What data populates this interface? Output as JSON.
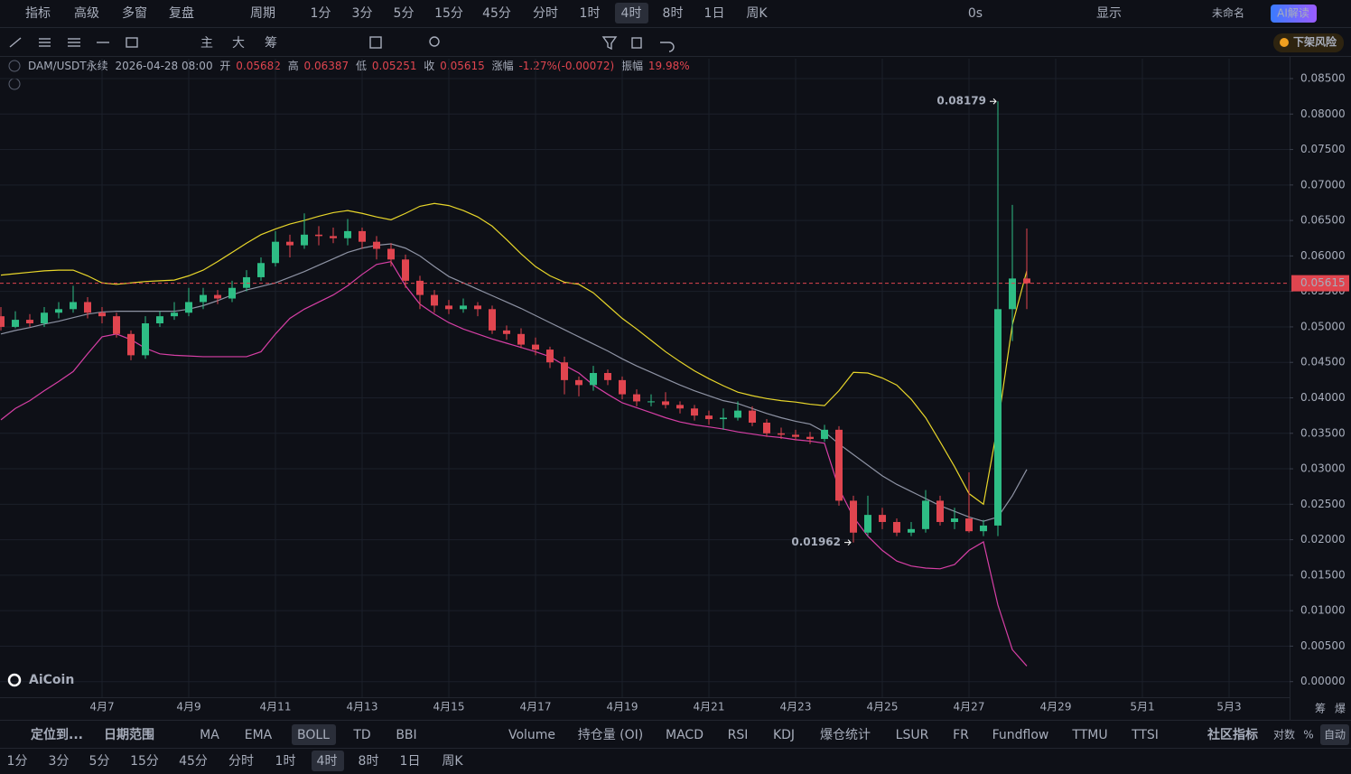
{
  "top_toolbar": {
    "left": [
      "指标",
      "高级",
      "多窗",
      "复盘",
      "周期"
    ],
    "periods": [
      "1分",
      "3分",
      "5分",
      "15分",
      "45分",
      "分时",
      "1时",
      "4时",
      "8时",
      "1日",
      "周K"
    ],
    "right": [
      "0s",
      "显示",
      "未命名",
      "AI解读"
    ]
  },
  "drawing_toolbar": {
    "labels": [
      "主",
      "大",
      "筹"
    ],
    "risk_badge": "下架风险"
  },
  "info_bar": {
    "symbol": "DAM/USDT永续",
    "time": "2026-04-28 08:00",
    "open_label": "开",
    "open": 0.05682,
    "high_label": "高",
    "high": 0.06387,
    "low_label": "低",
    "low": 0.05251,
    "close_label": "收",
    "close": 0.05615,
    "change_label": "涨幅",
    "change": "-1.27%(-0.00072)",
    "amplitude_label": "振幅",
    "amplitude": "19.98%"
  },
  "chart_data": {
    "type": "candlestick",
    "up_color": "#2ebd85",
    "down_color": "#e0454f",
    "grid": true,
    "x_labels": [
      "4月7",
      "4月9",
      "4月11",
      "4月13",
      "4月15",
      "4月17",
      "4月19",
      "4月21",
      "4月23",
      "4月25",
      "4月27",
      "4月29",
      "5月1",
      "5月3"
    ],
    "ylim": [
      -0.0022,
      0.0878
    ],
    "yticks": [
      {
        "value": 0.085,
        "label": "0.08500"
      },
      {
        "value": 0.08,
        "label": "0.08000"
      },
      {
        "value": 0.075,
        "label": "0.07500"
      },
      {
        "value": 0.07,
        "label": "0.07000"
      },
      {
        "value": 0.065,
        "label": "0.06500"
      },
      {
        "value": 0.06,
        "label": "0.06000"
      },
      {
        "value": 0.055,
        "label": "0.05500"
      },
      {
        "value": 0.05,
        "label": "0.05000"
      },
      {
        "value": 0.045,
        "label": "0.04500"
      },
      {
        "value": 0.04,
        "label": "0.04000"
      },
      {
        "value": 0.035,
        "label": "0.03500"
      },
      {
        "value": 0.03,
        "label": "0.03000"
      },
      {
        "value": 0.025,
        "label": "0.02500"
      },
      {
        "value": 0.02,
        "label": "0.02000"
      },
      {
        "value": 0.015,
        "label": "0.01500"
      },
      {
        "value": 0.01,
        "label": "0.01000"
      },
      {
        "value": 0.005,
        "label": "0.00500"
      },
      {
        "value": 0,
        "label": "0.00000"
      }
    ],
    "price_line": 0.05615,
    "max_label": 0.08179,
    "min_label": 0.01962,
    "candles": [
      [
        0.0515,
        0.0528,
        0.0495,
        0.05
      ],
      [
        0.05,
        0.0522,
        0.0498,
        0.051
      ],
      [
        0.051,
        0.0518,
        0.05,
        0.0505
      ],
      [
        0.0505,
        0.0528,
        0.05,
        0.052
      ],
      [
        0.052,
        0.0535,
        0.0512,
        0.0525
      ],
      [
        0.0525,
        0.0558,
        0.052,
        0.0535
      ],
      [
        0.0535,
        0.0542,
        0.0512,
        0.052
      ],
      [
        0.052,
        0.0528,
        0.0505,
        0.0515
      ],
      [
        0.0515,
        0.052,
        0.0485,
        0.049
      ],
      [
        0.049,
        0.0495,
        0.0453,
        0.046
      ],
      [
        0.046,
        0.0515,
        0.0455,
        0.0505
      ],
      [
        0.0505,
        0.0522,
        0.05,
        0.0515
      ],
      [
        0.0515,
        0.0535,
        0.051,
        0.052
      ],
      [
        0.052,
        0.0555,
        0.0515,
        0.0535
      ],
      [
        0.0535,
        0.0555,
        0.0525,
        0.0545
      ],
      [
        0.0545,
        0.0552,
        0.0532,
        0.054
      ],
      [
        0.054,
        0.0565,
        0.0535,
        0.0555
      ],
      [
        0.0555,
        0.058,
        0.055,
        0.057
      ],
      [
        0.057,
        0.0598,
        0.0565,
        0.059
      ],
      [
        0.059,
        0.0635,
        0.0585,
        0.062
      ],
      [
        0.062,
        0.063,
        0.0598,
        0.0615
      ],
      [
        0.0615,
        0.066,
        0.061,
        0.063
      ],
      [
        0.063,
        0.0642,
        0.0615,
        0.0628
      ],
      [
        0.0628,
        0.064,
        0.0618,
        0.0625
      ],
      [
        0.0625,
        0.0652,
        0.0615,
        0.0635
      ],
      [
        0.0635,
        0.064,
        0.061,
        0.062
      ],
      [
        0.062,
        0.0628,
        0.0595,
        0.061
      ],
      [
        0.061,
        0.0618,
        0.0585,
        0.0595
      ],
      [
        0.0595,
        0.0602,
        0.0555,
        0.0565
      ],
      [
        0.0565,
        0.0572,
        0.0525,
        0.0545
      ],
      [
        0.0545,
        0.0552,
        0.052,
        0.053
      ],
      [
        0.053,
        0.0538,
        0.0518,
        0.0525
      ],
      [
        0.0525,
        0.054,
        0.052,
        0.053
      ],
      [
        0.053,
        0.0535,
        0.0515,
        0.0525
      ],
      [
        0.0525,
        0.053,
        0.049,
        0.0495
      ],
      [
        0.0495,
        0.0502,
        0.0482,
        0.049
      ],
      [
        0.049,
        0.0498,
        0.047,
        0.0475
      ],
      [
        0.0475,
        0.0485,
        0.046,
        0.0468
      ],
      [
        0.0468,
        0.0472,
        0.0442,
        0.045
      ],
      [
        0.045,
        0.0458,
        0.0405,
        0.0425
      ],
      [
        0.0425,
        0.043,
        0.0402,
        0.0418
      ],
      [
        0.0418,
        0.0445,
        0.041,
        0.0435
      ],
      [
        0.0435,
        0.044,
        0.0418,
        0.0425
      ],
      [
        0.0425,
        0.043,
        0.0398,
        0.0405
      ],
      [
        0.0405,
        0.0412,
        0.0388,
        0.0395
      ],
      [
        0.0395,
        0.0405,
        0.0388,
        0.0395
      ],
      [
        0.0395,
        0.0408,
        0.0385,
        0.039
      ],
      [
        0.039,
        0.0395,
        0.0378,
        0.0385
      ],
      [
        0.0385,
        0.039,
        0.0368,
        0.0375
      ],
      [
        0.0375,
        0.0382,
        0.0362,
        0.037
      ],
      [
        0.037,
        0.0385,
        0.0355,
        0.0372
      ],
      [
        0.0372,
        0.0395,
        0.0368,
        0.0382
      ],
      [
        0.0382,
        0.0388,
        0.036,
        0.0365
      ],
      [
        0.0365,
        0.037,
        0.0345,
        0.035
      ],
      [
        0.035,
        0.0358,
        0.0342,
        0.0348
      ],
      [
        0.0348,
        0.0355,
        0.034,
        0.0345
      ],
      [
        0.0345,
        0.0352,
        0.0335,
        0.0342
      ],
      [
        0.0342,
        0.0362,
        0.0338,
        0.0355
      ],
      [
        0.0355,
        0.036,
        0.0248,
        0.0255
      ],
      [
        0.0255,
        0.0262,
        0.01962,
        0.021
      ],
      [
        0.021,
        0.0262,
        0.0205,
        0.0235
      ],
      [
        0.0235,
        0.0245,
        0.0215,
        0.0225
      ],
      [
        0.0225,
        0.023,
        0.0205,
        0.021
      ],
      [
        0.021,
        0.0225,
        0.0205,
        0.0215
      ],
      [
        0.0215,
        0.027,
        0.021,
        0.0255
      ],
      [
        0.0255,
        0.0262,
        0.022,
        0.0225
      ],
      [
        0.0225,
        0.0245,
        0.0215,
        0.023
      ],
      [
        0.023,
        0.0295,
        0.021,
        0.0212
      ],
      [
        0.0212,
        0.0228,
        0.0205,
        0.022
      ],
      [
        0.022,
        0.08179,
        0.0205,
        0.0525
      ],
      [
        0.0525,
        0.0672,
        0.048,
        0.05682
      ],
      [
        0.05682,
        0.06387,
        0.05251,
        0.05615
      ]
    ],
    "boll_upper": {
      "color": "#e8d62a",
      "values": [
        0.0573,
        0.0575,
        0.0577,
        0.0579,
        0.058,
        0.058,
        0.0572,
        0.0562,
        0.056,
        0.0562,
        0.0564,
        0.0565,
        0.0566,
        0.0572,
        0.058,
        0.0592,
        0.0605,
        0.0618,
        0.063,
        0.0638,
        0.0645,
        0.065,
        0.0656,
        0.0661,
        0.0664,
        0.066,
        0.0655,
        0.0651,
        0.066,
        0.067,
        0.0674,
        0.0671,
        0.0664,
        0.0655,
        0.0642,
        0.0623,
        0.0603,
        0.0585,
        0.0572,
        0.0563,
        0.056,
        0.0548,
        0.053,
        0.0512,
        0.0497,
        0.0481,
        0.0465,
        0.0451,
        0.0438,
        0.0427,
        0.0417,
        0.0408,
        0.0403,
        0.0399,
        0.0396,
        0.0394,
        0.0391,
        0.0389,
        0.041,
        0.0436,
        0.0435,
        0.0428,
        0.0418,
        0.0398,
        0.0372,
        0.0338,
        0.0303,
        0.0265,
        0.025,
        0.0363,
        0.0503,
        0.0579
      ]
    },
    "boll_mid": {
      "color": "#8e93a4",
      "values": [
        0.049,
        0.0495,
        0.0499,
        0.0504,
        0.0508,
        0.0513,
        0.0518,
        0.0521,
        0.0522,
        0.0522,
        0.0522,
        0.0522,
        0.0522,
        0.0525,
        0.053,
        0.0537,
        0.0545,
        0.0552,
        0.0557,
        0.0562,
        0.057,
        0.0578,
        0.0587,
        0.0596,
        0.0605,
        0.0611,
        0.0615,
        0.0617,
        0.0611,
        0.06,
        0.0585,
        0.0571,
        0.0562,
        0.0553,
        0.0544,
        0.0535,
        0.0526,
        0.0516,
        0.0506,
        0.0496,
        0.0486,
        0.0476,
        0.0466,
        0.0455,
        0.0445,
        0.0436,
        0.0427,
        0.0418,
        0.041,
        0.0403,
        0.0396,
        0.0392,
        0.0385,
        0.0378,
        0.0372,
        0.0367,
        0.0363,
        0.0352,
        0.0335,
        0.032,
        0.0305,
        0.029,
        0.0278,
        0.0268,
        0.0258,
        0.0248,
        0.024,
        0.0232,
        0.0226,
        0.0232,
        0.0262,
        0.0299
      ]
    },
    "boll_lower": {
      "color": "#d63fa5",
      "values": [
        0.0369,
        0.0385,
        0.0396,
        0.041,
        0.0423,
        0.0437,
        0.0462,
        0.0486,
        0.049,
        0.0482,
        0.047,
        0.0462,
        0.046,
        0.0459,
        0.0458,
        0.0458,
        0.0458,
        0.0458,
        0.0465,
        0.049,
        0.0512,
        0.0525,
        0.0535,
        0.0545,
        0.0558,
        0.0574,
        0.0588,
        0.0592,
        0.0558,
        0.0532,
        0.0518,
        0.0506,
        0.0497,
        0.049,
        0.0483,
        0.0477,
        0.0471,
        0.0465,
        0.0458,
        0.0446,
        0.0435,
        0.0418,
        0.0405,
        0.0393,
        0.0386,
        0.0379,
        0.0372,
        0.0366,
        0.0362,
        0.0359,
        0.0356,
        0.0352,
        0.0349,
        0.0346,
        0.0344,
        0.0341,
        0.0339,
        0.0336,
        0.0272,
        0.0232,
        0.0205,
        0.0185,
        0.017,
        0.0163,
        0.016,
        0.0159,
        0.0165,
        0.0185,
        0.0197,
        0.0108,
        0.0045,
        0.0022
      ]
    },
    "watermark": "AiCoin",
    "axis_corner": [
      "筹",
      "爆"
    ]
  },
  "bottom_toolbar": {
    "left": [
      "定位到...",
      "日期范围"
    ],
    "indicators": [
      "MA",
      "EMA",
      "BOLL",
      "TD",
      "BBI",
      "Volume",
      "持仓量 (OI)",
      "MACD",
      "RSI",
      "KDJ",
      "爆仓统计",
      "LSUR",
      "FR",
      "Fundflow",
      "TTMU",
      "TTSI",
      "社区指标"
    ],
    "right": [
      "对数",
      "%",
      "自动"
    ]
  }
}
